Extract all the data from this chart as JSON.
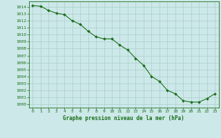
{
  "x": [
    0,
    1,
    2,
    3,
    4,
    5,
    6,
    7,
    8,
    9,
    10,
    11,
    12,
    13,
    14,
    15,
    16,
    17,
    18,
    19,
    20,
    21,
    22,
    23
  ],
  "y": [
    1014.2,
    1014.1,
    1013.5,
    1013.1,
    1012.9,
    1012.0,
    1011.5,
    1010.5,
    1009.7,
    1009.4,
    1009.4,
    1008.5,
    1007.8,
    1006.6,
    1005.6,
    1004.0,
    1003.3,
    1002.0,
    1001.5,
    1000.5,
    1000.3,
    1000.3,
    1000.8,
    1001.5
  ],
  "line_color": "#1a6e1a",
  "marker": "D",
  "marker_size": 2.0,
  "bg_color": "#cce8e8",
  "grid_color": "#aacece",
  "title": "Graphe pression niveau de la mer (hPa)",
  "tick_color": "#1a6e1a",
  "ylim": [
    999.5,
    1014.8
  ],
  "xlim": [
    -0.5,
    23.5
  ],
  "yticks": [
    1000,
    1001,
    1002,
    1003,
    1004,
    1005,
    1006,
    1007,
    1008,
    1009,
    1010,
    1011,
    1012,
    1013,
    1014
  ],
  "xticks": [
    0,
    1,
    2,
    3,
    4,
    5,
    6,
    7,
    8,
    9,
    10,
    11,
    12,
    13,
    14,
    15,
    16,
    17,
    18,
    19,
    20,
    21,
    22,
    23
  ]
}
